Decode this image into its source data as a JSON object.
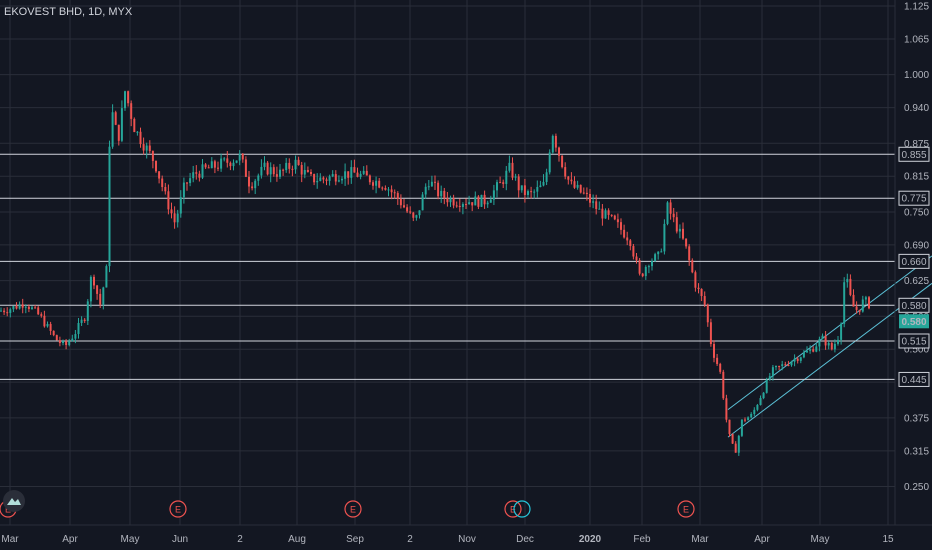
{
  "header": {
    "title": "EKOVEST BHD, 1D, MYX"
  },
  "colors": {
    "background": "#131722",
    "grid": "#2a2e39",
    "up": "#26a69a",
    "down": "#ef5350",
    "hline": "#d1d4dc",
    "channel": "#5bc0d6",
    "axis_text": "#b2b5be",
    "price_tag": "#26a69a"
  },
  "chart_data": {
    "type": "candlestick",
    "title": "EKOVEST BHD, 1D, MYX",
    "y_range": [
      0.22,
      1.125
    ],
    "y_ticks": [
      "1.125",
      "1.065",
      "1.000",
      "0.940",
      "0.875",
      "0.815",
      "0.750",
      "0.690",
      "0.625",
      "0.560",
      "0.500",
      "0.440",
      "0.375",
      "0.315",
      "0.250"
    ],
    "x_ticks": [
      "Mar",
      "Apr",
      "May",
      "Jun",
      "2",
      "Aug",
      "Sep",
      "2",
      "Nov",
      "Dec",
      "2020",
      "Feb",
      "Mar",
      "Apr",
      "May",
      "15"
    ],
    "x_tick_pos": [
      10,
      70,
      130,
      180,
      240,
      297,
      355,
      410,
      467,
      525,
      590,
      642,
      700,
      762,
      820,
      888
    ],
    "horizontal_levels": [
      {
        "value": 0.855,
        "label": "0.855"
      },
      {
        "value": 0.775,
        "label": "0.775"
      },
      {
        "value": 0.66,
        "label": "0.660"
      },
      {
        "value": 0.58,
        "label": "0.580"
      },
      {
        "value": 0.515,
        "label": "0.515"
      },
      {
        "value": 0.445,
        "label": "0.445"
      }
    ],
    "last_price": {
      "value": 0.58,
      "label": "0.580"
    },
    "channel": [
      {
        "x1": 728,
        "y1": 0.39,
        "x2": 932,
        "y2": 0.67
      },
      {
        "x1": 728,
        "y1": 0.34,
        "x2": 932,
        "y2": 0.62
      }
    ],
    "earnings_markers": [
      {
        "x": 8,
        "label": "E"
      },
      {
        "x": 178,
        "label": "E"
      },
      {
        "x": 353,
        "label": "E"
      },
      {
        "x": 513,
        "label": "E"
      },
      {
        "x": 686,
        "label": "E"
      }
    ],
    "dividend_markers": [
      {
        "x": 522
      }
    ],
    "price_path": [
      [
        0,
        0.57
      ],
      [
        12,
        0.575
      ],
      [
        25,
        0.585
      ],
      [
        40,
        0.56
      ],
      [
        55,
        0.52
      ],
      [
        65,
        0.505
      ],
      [
        75,
        0.53
      ],
      [
        85,
        0.56
      ],
      [
        92,
        0.64
      ],
      [
        100,
        0.58
      ],
      [
        108,
        0.66
      ],
      [
        110,
        0.95
      ],
      [
        118,
        0.88
      ],
      [
        125,
        0.97
      ],
      [
        135,
        0.9
      ],
      [
        145,
        0.87
      ],
      [
        155,
        0.84
      ],
      [
        165,
        0.78
      ],
      [
        175,
        0.73
      ],
      [
        185,
        0.8
      ],
      [
        195,
        0.82
      ],
      [
        210,
        0.83
      ],
      [
        225,
        0.84
      ],
      [
        240,
        0.85
      ],
      [
        250,
        0.8
      ],
      [
        265,
        0.83
      ],
      [
        280,
        0.82
      ],
      [
        295,
        0.84
      ],
      [
        310,
        0.81
      ],
      [
        325,
        0.81
      ],
      [
        340,
        0.82
      ],
      [
        355,
        0.82
      ],
      [
        370,
        0.81
      ],
      [
        385,
        0.8
      ],
      [
        400,
        0.77
      ],
      [
        415,
        0.73
      ],
      [
        428,
        0.81
      ],
      [
        440,
        0.78
      ],
      [
        455,
        0.77
      ],
      [
        470,
        0.77
      ],
      [
        485,
        0.77
      ],
      [
        500,
        0.8
      ],
      [
        510,
        0.83
      ],
      [
        520,
        0.79
      ],
      [
        530,
        0.78
      ],
      [
        545,
        0.8
      ],
      [
        552,
        0.9
      ],
      [
        560,
        0.85
      ],
      [
        570,
        0.8
      ],
      [
        585,
        0.78
      ],
      [
        600,
        0.75
      ],
      [
        615,
        0.73
      ],
      [
        630,
        0.7
      ],
      [
        640,
        0.63
      ],
      [
        648,
        0.66
      ],
      [
        660,
        0.67
      ],
      [
        667,
        0.76
      ],
      [
        675,
        0.73
      ],
      [
        685,
        0.69
      ],
      [
        695,
        0.62
      ],
      [
        705,
        0.58
      ],
      [
        712,
        0.5
      ],
      [
        720,
        0.46
      ],
      [
        728,
        0.35
      ],
      [
        735,
        0.31
      ],
      [
        742,
        0.37
      ],
      [
        752,
        0.38
      ],
      [
        762,
        0.42
      ],
      [
        772,
        0.46
      ],
      [
        782,
        0.47
      ],
      [
        792,
        0.48
      ],
      [
        802,
        0.49
      ],
      [
        812,
        0.5
      ],
      [
        822,
        0.52
      ],
      [
        832,
        0.5
      ],
      [
        840,
        0.53
      ],
      [
        845,
        0.64
      ],
      [
        852,
        0.58
      ],
      [
        858,
        0.57
      ],
      [
        864,
        0.59
      ],
      [
        870,
        0.58
      ]
    ]
  }
}
